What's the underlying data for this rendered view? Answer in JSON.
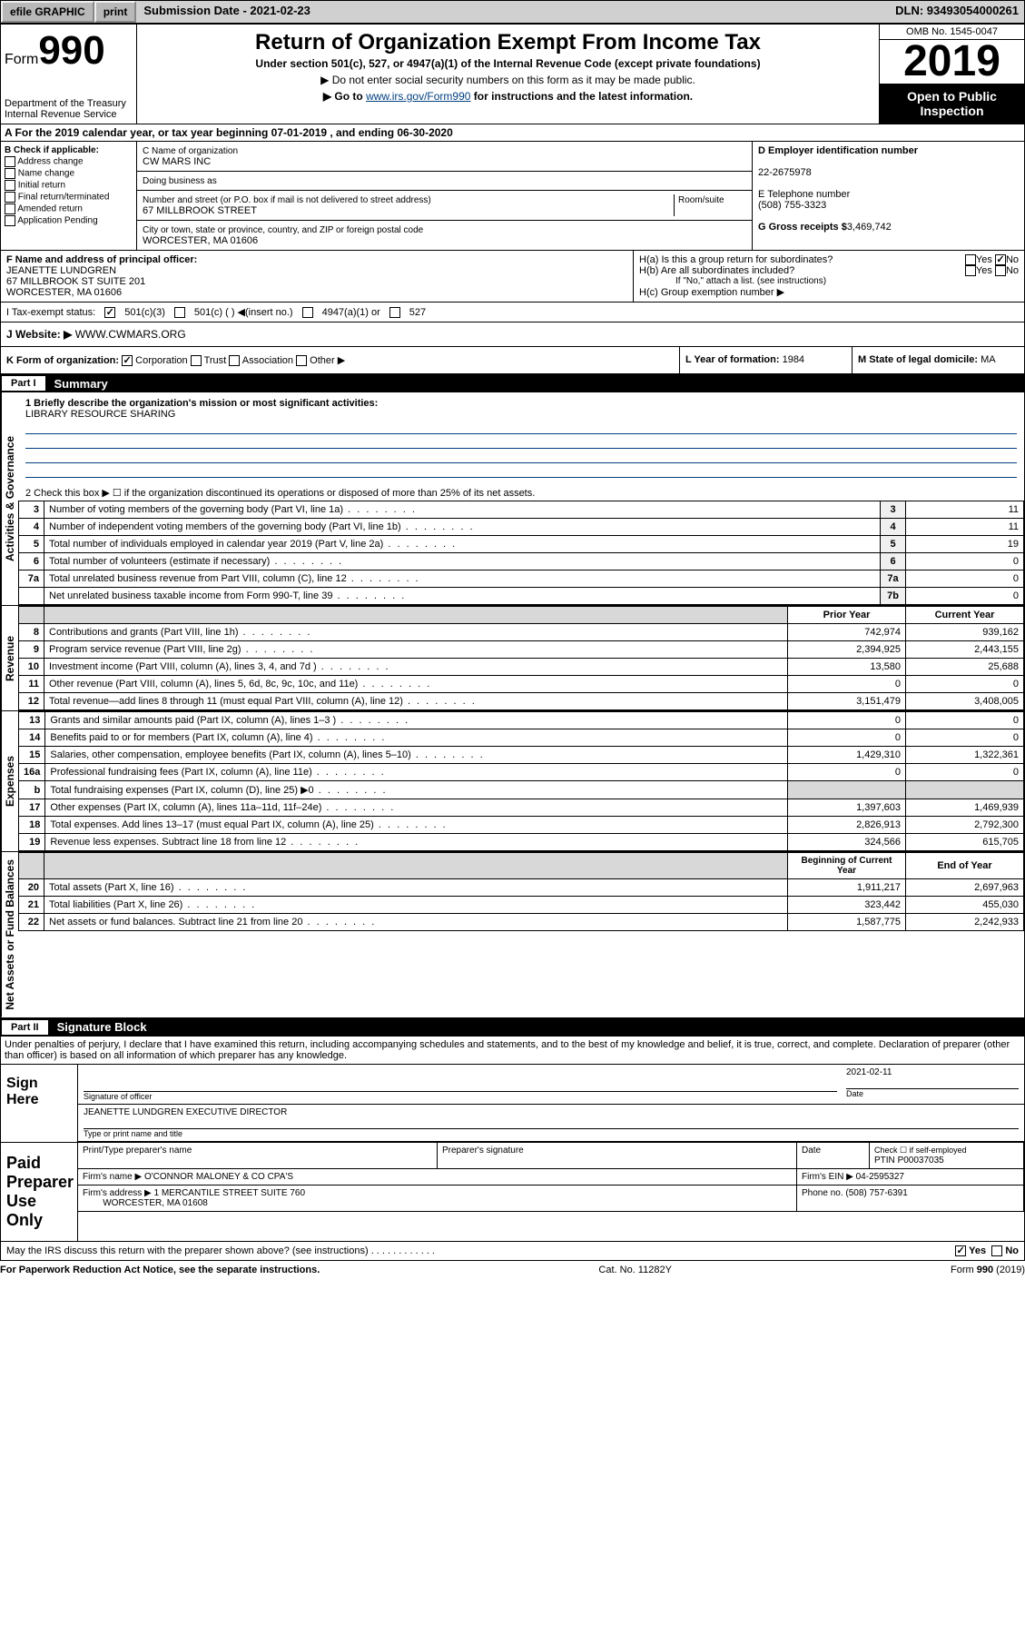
{
  "topbar": {
    "efile": "efile GRAPHIC",
    "print": "print",
    "sub_label": "Submission Date - 2021-02-23",
    "dln": "DLN: 93493054000261"
  },
  "header": {
    "form_prefix": "Form",
    "form_num": "990",
    "dept": "Department of the Treasury\nInternal Revenue Service",
    "title": "Return of Organization Exempt From Income Tax",
    "subtitle": "Under section 501(c), 527, or 4947(a)(1) of the Internal Revenue Code (except private foundations)",
    "note1": "▶ Do not enter social security numbers on this form as it may be made public.",
    "note2_pre": "▶ Go to ",
    "note2_link": "www.irs.gov/Form990",
    "note2_post": " for instructions and the latest information.",
    "omb": "OMB No. 1545-0047",
    "year": "2019",
    "open": "Open to Public Inspection"
  },
  "a": "A For the 2019 calendar year, or tax year beginning 07-01-2019    , and ending 06-30-2020",
  "b": {
    "heading": "B Check if applicable:",
    "opts": [
      "Address change",
      "Name change",
      "Initial return",
      "Final return/terminated",
      "Amended return",
      "Application Pending"
    ]
  },
  "c": {
    "name_label": "C Name of organization",
    "name": "CW MARS INC",
    "dba_label": "Doing business as",
    "addr_label": "Number and street (or P.O. box if mail is not delivered to street address)",
    "room_label": "Room/suite",
    "addr": "67 MILLBROOK STREET",
    "city_label": "City or town, state or province, country, and ZIP or foreign postal code",
    "city": "WORCESTER, MA  01606"
  },
  "d": {
    "label": "D Employer identification number",
    "value": "22-2675978"
  },
  "e": {
    "label": "E Telephone number",
    "value": "(508) 755-3323"
  },
  "g": {
    "label": "G Gross receipts $",
    "value": "3,469,742"
  },
  "f": {
    "label": "F  Name and address of principal officer:",
    "name": "JEANETTE LUNDGREN",
    "addr1": "67 MILLBROOK ST SUITE 201",
    "addr2": "WORCESTER, MA  01606"
  },
  "h": {
    "a": "H(a)  Is this a group return for subordinates?",
    "b": "H(b)  Are all subordinates included?",
    "b_note": "If \"No,\" attach a list. (see instructions)",
    "c": "H(c)  Group exemption number ▶",
    "yes": "Yes",
    "no": "No"
  },
  "i": {
    "label": "I   Tax-exempt status:",
    "opts": [
      "501(c)(3)",
      "501(c) (  ) ◀(insert no.)",
      "4947(a)(1) or",
      "527"
    ]
  },
  "j": {
    "label": "J   Website: ▶",
    "value": "WWW.CWMARS.ORG"
  },
  "k": {
    "label": "K Form of organization:",
    "opts": [
      "Corporation",
      "Trust",
      "Association",
      "Other ▶"
    ]
  },
  "l": {
    "label": "L Year of formation:",
    "value": "1984"
  },
  "m": {
    "label": "M State of legal domicile:",
    "value": "MA"
  },
  "part1": {
    "num": "Part I",
    "title": "Summary"
  },
  "summary": {
    "line1_label": "1  Briefly describe the organization's mission or most significant activities:",
    "line1_value": "LIBRARY RESOURCE SHARING",
    "line2": "2   Check this box ▶ ☐  if the organization discontinued its operations or disposed of more than 25% of its net assets.",
    "prior": "Prior Year",
    "current": "Current Year",
    "begin": "Beginning of Current Year",
    "end": "End of Year",
    "rows_gov": [
      {
        "n": "3",
        "d": "Number of voting members of the governing body (Part VI, line 1a)",
        "r": "3",
        "v": "11"
      },
      {
        "n": "4",
        "d": "Number of independent voting members of the governing body (Part VI, line 1b)",
        "r": "4",
        "v": "11"
      },
      {
        "n": "5",
        "d": "Total number of individuals employed in calendar year 2019 (Part V, line 2a)",
        "r": "5",
        "v": "19"
      },
      {
        "n": "6",
        "d": "Total number of volunteers (estimate if necessary)",
        "r": "6",
        "v": "0"
      },
      {
        "n": "7a",
        "d": "Total unrelated business revenue from Part VIII, column (C), line 12",
        "r": "7a",
        "v": "0"
      },
      {
        "n": "",
        "d": "Net unrelated business taxable income from Form 990-T, line 39",
        "r": "7b",
        "v": "0"
      }
    ],
    "rows_rev": [
      {
        "n": "8",
        "d": "Contributions and grants (Part VIII, line 1h)",
        "p": "742,974",
        "c": "939,162"
      },
      {
        "n": "9",
        "d": "Program service revenue (Part VIII, line 2g)",
        "p": "2,394,925",
        "c": "2,443,155"
      },
      {
        "n": "10",
        "d": "Investment income (Part VIII, column (A), lines 3, 4, and 7d )",
        "p": "13,580",
        "c": "25,688"
      },
      {
        "n": "11",
        "d": "Other revenue (Part VIII, column (A), lines 5, 6d, 8c, 9c, 10c, and 11e)",
        "p": "0",
        "c": "0"
      },
      {
        "n": "12",
        "d": "Total revenue—add lines 8 through 11 (must equal Part VIII, column (A), line 12)",
        "p": "3,151,479",
        "c": "3,408,005"
      }
    ],
    "rows_exp": [
      {
        "n": "13",
        "d": "Grants and similar amounts paid (Part IX, column (A), lines 1–3 )",
        "p": "0",
        "c": "0"
      },
      {
        "n": "14",
        "d": "Benefits paid to or for members (Part IX, column (A), line 4)",
        "p": "0",
        "c": "0"
      },
      {
        "n": "15",
        "d": "Salaries, other compensation, employee benefits (Part IX, column (A), lines 5–10)",
        "p": "1,429,310",
        "c": "1,322,361"
      },
      {
        "n": "16a",
        "d": "Professional fundraising fees (Part IX, column (A), line 11e)",
        "p": "0",
        "c": "0"
      },
      {
        "n": "b",
        "d": "Total fundraising expenses (Part IX, column (D), line 25) ▶0",
        "p": "",
        "c": "",
        "shade": true
      },
      {
        "n": "17",
        "d": "Other expenses (Part IX, column (A), lines 11a–11d, 11f–24e)",
        "p": "1,397,603",
        "c": "1,469,939"
      },
      {
        "n": "18",
        "d": "Total expenses. Add lines 13–17 (must equal Part IX, column (A), line 25)",
        "p": "2,826,913",
        "c": "2,792,300"
      },
      {
        "n": "19",
        "d": "Revenue less expenses. Subtract line 18 from line 12",
        "p": "324,566",
        "c": "615,705"
      }
    ],
    "rows_net": [
      {
        "n": "20",
        "d": "Total assets (Part X, line 16)",
        "p": "1,911,217",
        "c": "2,697,963"
      },
      {
        "n": "21",
        "d": "Total liabilities (Part X, line 26)",
        "p": "323,442",
        "c": "455,030"
      },
      {
        "n": "22",
        "d": "Net assets or fund balances. Subtract line 21 from line 20",
        "p": "1,587,775",
        "c": "2,242,933"
      }
    ]
  },
  "vert": {
    "gov": "Activities & Governance",
    "rev": "Revenue",
    "exp": "Expenses",
    "net": "Net Assets or Fund Balances"
  },
  "part2": {
    "num": "Part II",
    "title": "Signature Block"
  },
  "sig": {
    "perjury": "Under penalties of perjury, I declare that I have examined this return, including accompanying schedules and statements, and to the best of my knowledge and belief, it is true, correct, and complete. Declaration of preparer (other than officer) is based on all information of which preparer has any knowledge.",
    "sign_here": "Sign Here",
    "sig_label": "Signature of officer",
    "date_label": "Date",
    "date": "2021-02-11",
    "name_title": "JEANETTE LUNDGREN  EXECUTIVE DIRECTOR",
    "name_label": "Type or print name and title",
    "paid": "Paid Preparer Use Only",
    "prep_name_label": "Print/Type preparer's name",
    "prep_sig_label": "Preparer's signature",
    "check_label": "Check ☐ if self-employed",
    "ptin_label": "PTIN",
    "ptin": "P00037035",
    "firm_name_label": "Firm's name     ▶",
    "firm_name": "O'CONNOR MALONEY & CO CPA'S",
    "firm_ein_label": "Firm's EIN ▶",
    "firm_ein": "04-2595327",
    "firm_addr_label": "Firm's address ▶",
    "firm_addr": "1 MERCANTILE STREET SUITE 760",
    "firm_city": "WORCESTER, MA  01608",
    "phone_label": "Phone no.",
    "phone": "(508) 757-6391",
    "discuss": "May the IRS discuss this return with the preparer shown above? (see instructions)",
    "yes": "Yes",
    "no": "No"
  },
  "footer": {
    "left": "For Paperwork Reduction Act Notice, see the separate instructions.",
    "mid": "Cat. No. 11282Y",
    "right": "Form 990 (2019)"
  }
}
